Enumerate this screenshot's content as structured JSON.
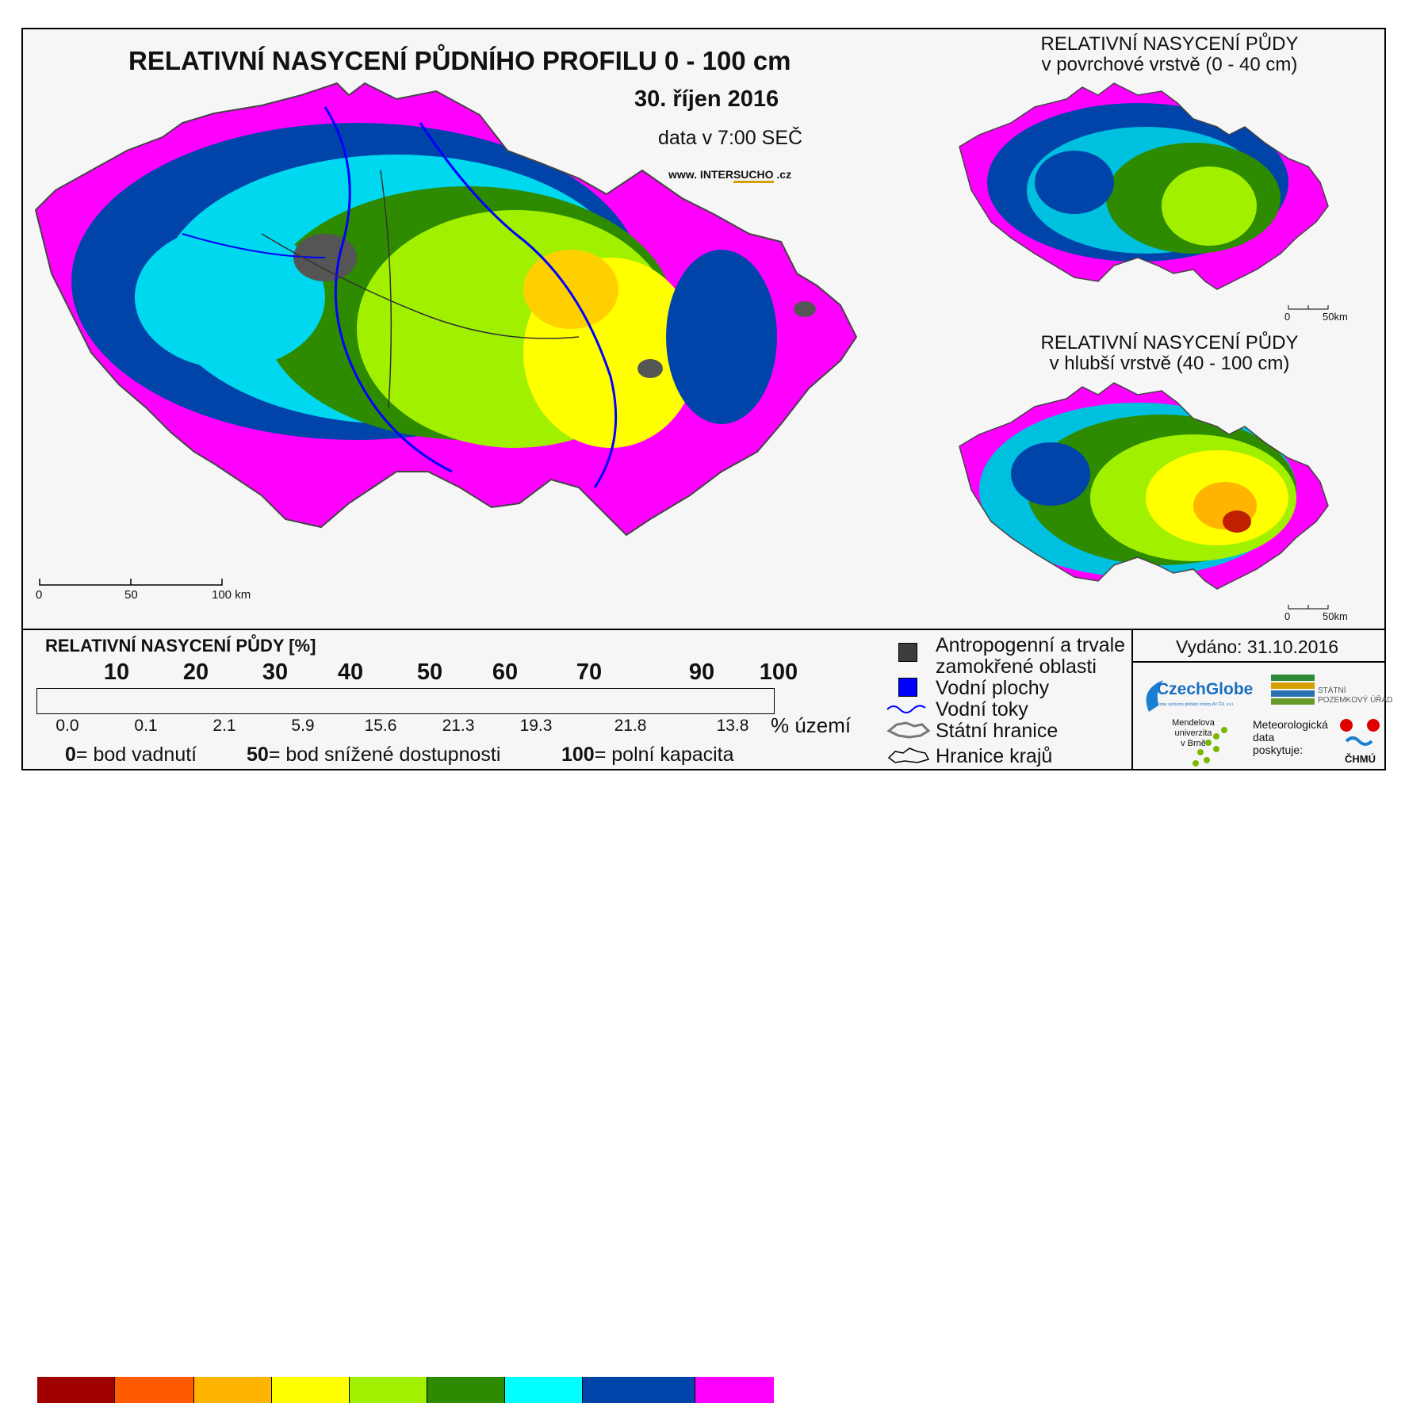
{
  "header": {
    "title": "RELATIVNÍ NASYCENÍ PŮDNÍHO PROFILU 0 - 100 cm",
    "date": "30. říjen 2016",
    "time": "data v 7:00 SEČ",
    "url_prefix": "www. INTER",
    "url_bold": "SUCHO",
    "url_suffix": " .cz"
  },
  "main_map": {
    "scale_labels": [
      "0",
      "50",
      "100 km"
    ]
  },
  "inset_top": {
    "title_line1": "RELATIVNÍ NASYCENÍ PŮDY",
    "title_line2": "v povrchové vrstvě (0 - 40 cm)",
    "scale_labels": [
      "0",
      "50km"
    ]
  },
  "inset_bottom": {
    "title_line1": "RELATIVNÍ NASYCENÍ PŮDY",
    "title_line2": "v hlubší vrstvě (40 - 100 cm)",
    "scale_labels": [
      "0",
      "50km"
    ]
  },
  "legend": {
    "title": "RELATIVNÍ NASYCENÍ PŮDY [%]",
    "thresholds": [
      "10",
      "20",
      "30",
      "40",
      "50",
      "60",
      "70",
      "90",
      "100"
    ],
    "classes": [
      {
        "color": "#a00000",
        "share": "0.0"
      },
      {
        "color": "#ff5a00",
        "share": "0.1"
      },
      {
        "color": "#ffb400",
        "share": "2.1"
      },
      {
        "color": "#ffff00",
        "share": "5.9"
      },
      {
        "color": "#a0f000",
        "share": "15.6"
      },
      {
        "color": "#2e8b00",
        "share": "21.3"
      },
      {
        "color": "#00ffff",
        "share": "19.3"
      },
      {
        "color": "#0044aa",
        "share": "21.8"
      },
      {
        "color": "#ff00ff",
        "share": "13.8"
      }
    ],
    "unit": "% území",
    "notes": [
      {
        "value": "0",
        "text": "= bod vadnutí"
      },
      {
        "value": "50",
        "text": "= bod snížené dostupnosti"
      },
      {
        "value": "100",
        "text": "= polní kapacita"
      }
    ]
  },
  "legend_right": {
    "items": [
      {
        "icon": "dark-gray-square-icon",
        "line1": "Antropogenní a trvale",
        "line2": "zamokřené oblasti"
      },
      {
        "icon": "blue-square-icon",
        "line1": "Vodní plochy"
      },
      {
        "icon": "river-line-icon",
        "line1": "Vodní toky"
      },
      {
        "icon": "state-border-icon",
        "line1": "Státní hranice"
      },
      {
        "icon": "region-border-icon",
        "line1": "Hranice krajů"
      }
    ]
  },
  "footer": {
    "issued": "Vydáno: 31.10.2016",
    "czechglobe": "CzechGlobe",
    "czechglobe_sub": "Ústav výzkumu globální změny AV ČR, v.v.i.",
    "spu_line1": "STÁTNÍ",
    "spu_line2": "POZEMKOVÝ ÚŘAD",
    "mendel_lines": [
      "Mendelova",
      "univerzita",
      "v Brně"
    ],
    "meteo_lines": [
      "Meteorologická",
      "data",
      "poskytuje:"
    ],
    "chmu": "ČHMÚ"
  }
}
